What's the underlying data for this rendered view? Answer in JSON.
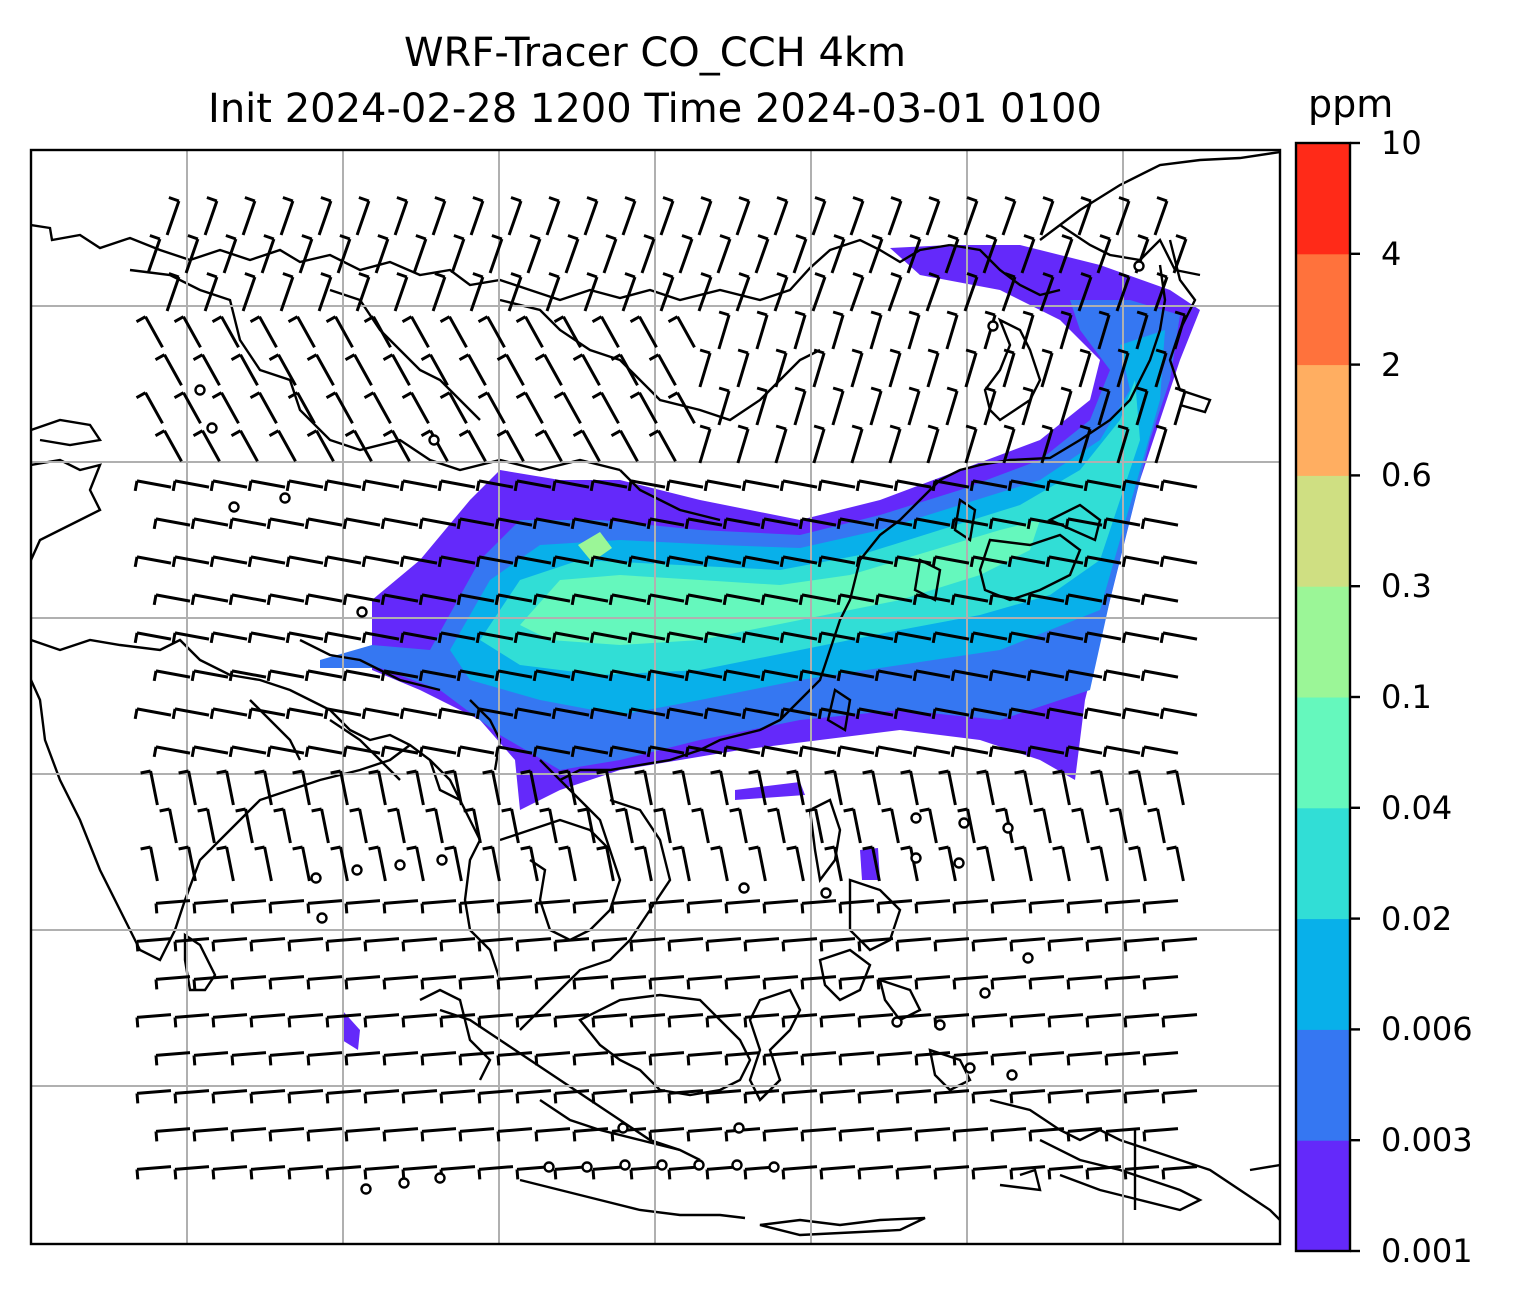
{
  "title_line1": "WRF-Tracer CO_CCH 4km",
  "title_line2": "Init 2024-02-28 1200 Time 2024-03-01 0100",
  "colorbar": {
    "unit": "ppm",
    "levels": [
      "0.001",
      "0.003",
      "0.006",
      "0.02",
      "0.04",
      "0.1",
      "0.3",
      "0.6",
      "2",
      "4",
      "10"
    ],
    "colors": [
      "#6429fa",
      "#3577f2",
      "#08b0ea",
      "#31ded6",
      "#65f8bd",
      "#9bf697",
      "#cfdf82",
      "#ffae61",
      "#ff723c",
      "#ff2a18"
    ]
  },
  "map": {
    "grid": "on",
    "field_colors": {
      "faint": "#6429fa",
      "low": "#3577f2",
      "mid": "#08b0ea",
      "high": "#31ded6",
      "peak": "#65f8bd",
      "max": "#9bf697"
    }
  }
}
